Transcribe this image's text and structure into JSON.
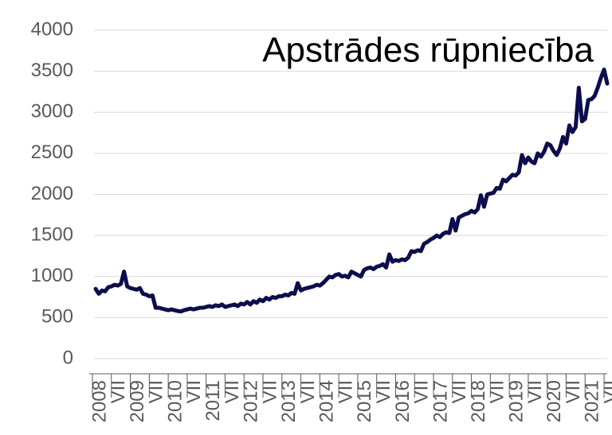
{
  "chart_data": {
    "type": "line",
    "title": "Apstrādes rūpniecība",
    "categories": [
      "2008",
      null,
      null,
      null,
      null,
      null,
      "VII",
      null,
      null,
      null,
      null,
      null,
      "2009",
      null,
      null,
      null,
      null,
      null,
      "VII",
      null,
      null,
      null,
      null,
      null,
      "2010",
      null,
      null,
      null,
      null,
      null,
      "VII",
      null,
      null,
      null,
      null,
      null,
      "2011",
      null,
      null,
      null,
      null,
      null,
      "VII",
      null,
      null,
      null,
      null,
      null,
      "2012",
      null,
      null,
      null,
      null,
      null,
      "VII",
      null,
      null,
      null,
      null,
      null,
      "2013",
      null,
      null,
      null,
      null,
      null,
      "VII",
      null,
      null,
      null,
      null,
      null,
      "2014",
      null,
      null,
      null,
      null,
      null,
      "VII",
      null,
      null,
      null,
      null,
      null,
      "2015",
      null,
      null,
      null,
      null,
      null,
      "VII",
      null,
      null,
      null,
      null,
      null,
      "2016",
      null,
      null,
      null,
      null,
      null,
      "VII",
      null,
      null,
      null,
      null,
      null,
      "2017",
      null,
      null,
      null,
      null,
      null,
      "VII",
      null,
      null,
      null,
      null,
      null,
      "2018",
      null,
      null,
      null,
      null,
      null,
      "VII",
      null,
      null,
      null,
      null,
      null,
      "2019",
      null,
      null,
      null,
      null,
      null,
      "VII",
      null,
      null,
      null,
      null,
      null,
      "2020",
      null,
      null,
      null,
      null,
      null,
      "VII",
      null,
      null,
      null,
      null,
      null,
      "2021",
      null,
      null,
      null,
      null,
      null,
      "VII"
    ],
    "values": [
      850,
      790,
      830,
      820,
      870,
      880,
      900,
      890,
      910,
      1060,
      880,
      860,
      850,
      840,
      860,
      790,
      780,
      760,
      770,
      620,
      620,
      610,
      600,
      590,
      600,
      590,
      580,
      575,
      590,
      600,
      610,
      600,
      610,
      620,
      620,
      630,
      640,
      630,
      650,
      640,
      660,
      630,
      640,
      650,
      660,
      640,
      670,
      660,
      690,
      660,
      700,
      680,
      720,
      700,
      740,
      720,
      750,
      740,
      760,
      760,
      780,
      770,
      800,
      790,
      920,
      830,
      850,
      860,
      870,
      880,
      900,
      890,
      920,
      960,
      1000,
      990,
      1020,
      1030,
      1000,
      1010,
      990,
      1060,
      1040,
      1020,
      1000,
      1080,
      1100,
      1110,
      1090,
      1120,
      1130,
      1150,
      1110,
      1270,
      1180,
      1200,
      1190,
      1210,
      1200,
      1230,
      1310,
      1300,
      1320,
      1310,
      1400,
      1420,
      1450,
      1470,
      1500,
      1480,
      1520,
      1540,
      1530,
      1700,
      1560,
      1720,
      1740,
      1760,
      1770,
      1800,
      1780,
      1820,
      1990,
      1850,
      2000,
      2010,
      2020,
      2080,
      2070,
      2180,
      2160,
      2200,
      2240,
      2230,
      2270,
      2480,
      2380,
      2450,
      2400,
      2380,
      2500,
      2460,
      2520,
      2620,
      2600,
      2530,
      2480,
      2560,
      2700,
      2620,
      2840,
      2760,
      2820,
      3300,
      2890,
      2920,
      3150,
      3160,
      3200,
      3300,
      3420,
      3520,
      3350
    ],
    "color": "#0d0d4d",
    "ylim": [
      0,
      4000
    ],
    "yticks": [
      0,
      500,
      1000,
      1500,
      2000,
      2500,
      3000,
      3500,
      4000
    ],
    "grid": true
  }
}
